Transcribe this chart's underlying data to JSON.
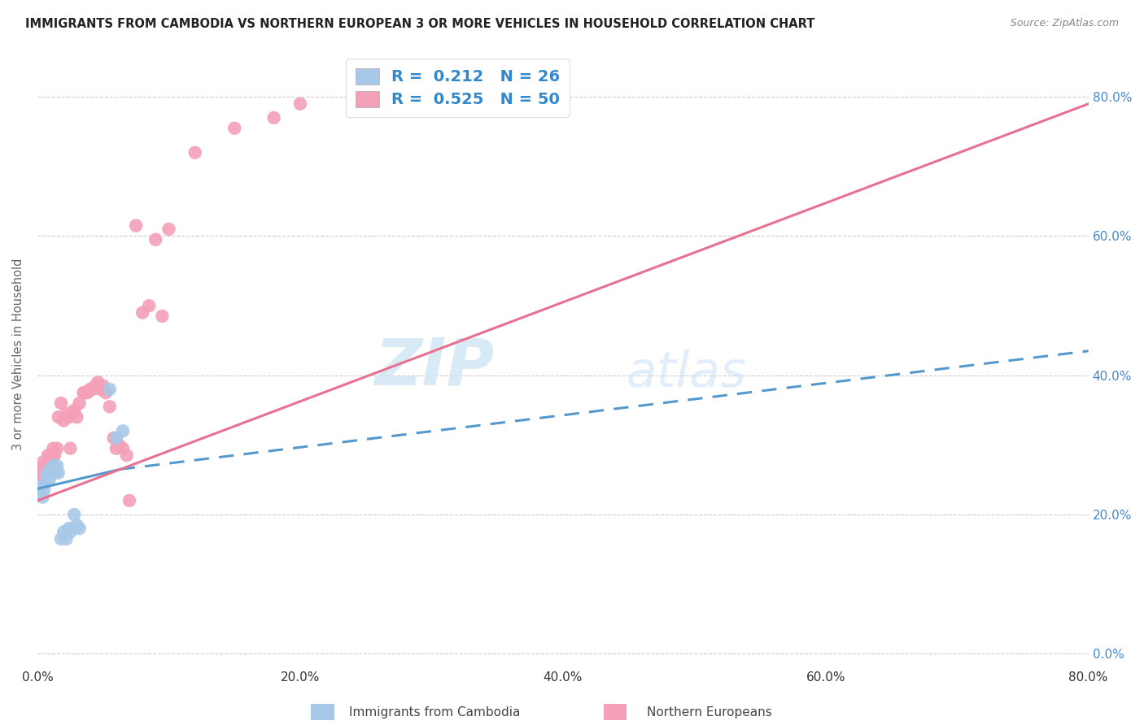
{
  "title": "IMMIGRANTS FROM CAMBODIA VS NORTHERN EUROPEAN 3 OR MORE VEHICLES IN HOUSEHOLD CORRELATION CHART",
  "source": "Source: ZipAtlas.com",
  "ylabel": "3 or more Vehicles in Household",
  "xlim": [
    0.0,
    0.8
  ],
  "ylim": [
    -0.02,
    0.88
  ],
  "yticks": [
    0.0,
    0.2,
    0.4,
    0.6,
    0.8
  ],
  "xticks": [
    0.0,
    0.2,
    0.4,
    0.6,
    0.8
  ],
  "blue_color": "#a8c8e8",
  "pink_color": "#f4a0b8",
  "blue_line_color": "#5599cc",
  "pink_line_color": "#e87090",
  "watermark_zip": "ZIP",
  "watermark_atlas": "atlas",
  "cambodia_x": [
    0.002,
    0.003,
    0.004,
    0.005,
    0.006,
    0.007,
    0.008,
    0.009,
    0.01,
    0.011,
    0.012,
    0.013,
    0.014,
    0.015,
    0.016,
    0.018,
    0.02,
    0.022,
    0.024,
    0.025,
    0.028,
    0.03,
    0.032,
    0.055,
    0.06,
    0.065
  ],
  "cambodia_y": [
    0.23,
    0.24,
    0.225,
    0.235,
    0.245,
    0.255,
    0.26,
    0.25,
    0.265,
    0.265,
    0.27,
    0.26,
    0.265,
    0.27,
    0.26,
    0.165,
    0.175,
    0.165,
    0.18,
    0.175,
    0.2,
    0.185,
    0.18,
    0.38,
    0.31,
    0.32
  ],
  "northern_x": [
    0.002,
    0.003,
    0.004,
    0.005,
    0.006,
    0.007,
    0.008,
    0.009,
    0.01,
    0.011,
    0.012,
    0.013,
    0.015,
    0.016,
    0.018,
    0.02,
    0.022,
    0.024,
    0.025,
    0.026,
    0.028,
    0.03,
    0.032,
    0.035,
    0.036,
    0.038,
    0.04,
    0.042,
    0.044,
    0.046,
    0.048,
    0.05,
    0.052,
    0.055,
    0.058,
    0.06,
    0.062,
    0.065,
    0.068,
    0.07,
    0.075,
    0.08,
    0.085,
    0.09,
    0.095,
    0.1,
    0.12,
    0.15,
    0.18,
    0.2
  ],
  "northern_y": [
    0.255,
    0.26,
    0.275,
    0.27,
    0.26,
    0.27,
    0.285,
    0.265,
    0.285,
    0.285,
    0.295,
    0.285,
    0.295,
    0.34,
    0.36,
    0.335,
    0.345,
    0.34,
    0.295,
    0.345,
    0.35,
    0.34,
    0.36,
    0.375,
    0.375,
    0.375,
    0.38,
    0.38,
    0.385,
    0.39,
    0.38,
    0.385,
    0.375,
    0.355,
    0.31,
    0.295,
    0.3,
    0.295,
    0.285,
    0.22,
    0.615,
    0.49,
    0.5,
    0.595,
    0.485,
    0.61,
    0.72,
    0.755,
    0.77,
    0.79
  ],
  "blue_trendline_solid": [
    [
      0.0,
      0.237
    ],
    [
      0.063,
      0.265
    ]
  ],
  "blue_trendline_dashed": [
    [
      0.063,
      0.265
    ],
    [
      0.8,
      0.435
    ]
  ],
  "pink_trendline": [
    [
      0.0,
      0.22
    ],
    [
      0.8,
      0.79
    ]
  ],
  "legend_r1": "R =  0.212",
  "legend_n1": "N = 26",
  "legend_r2": "R =  0.525",
  "legend_n2": "N = 50"
}
